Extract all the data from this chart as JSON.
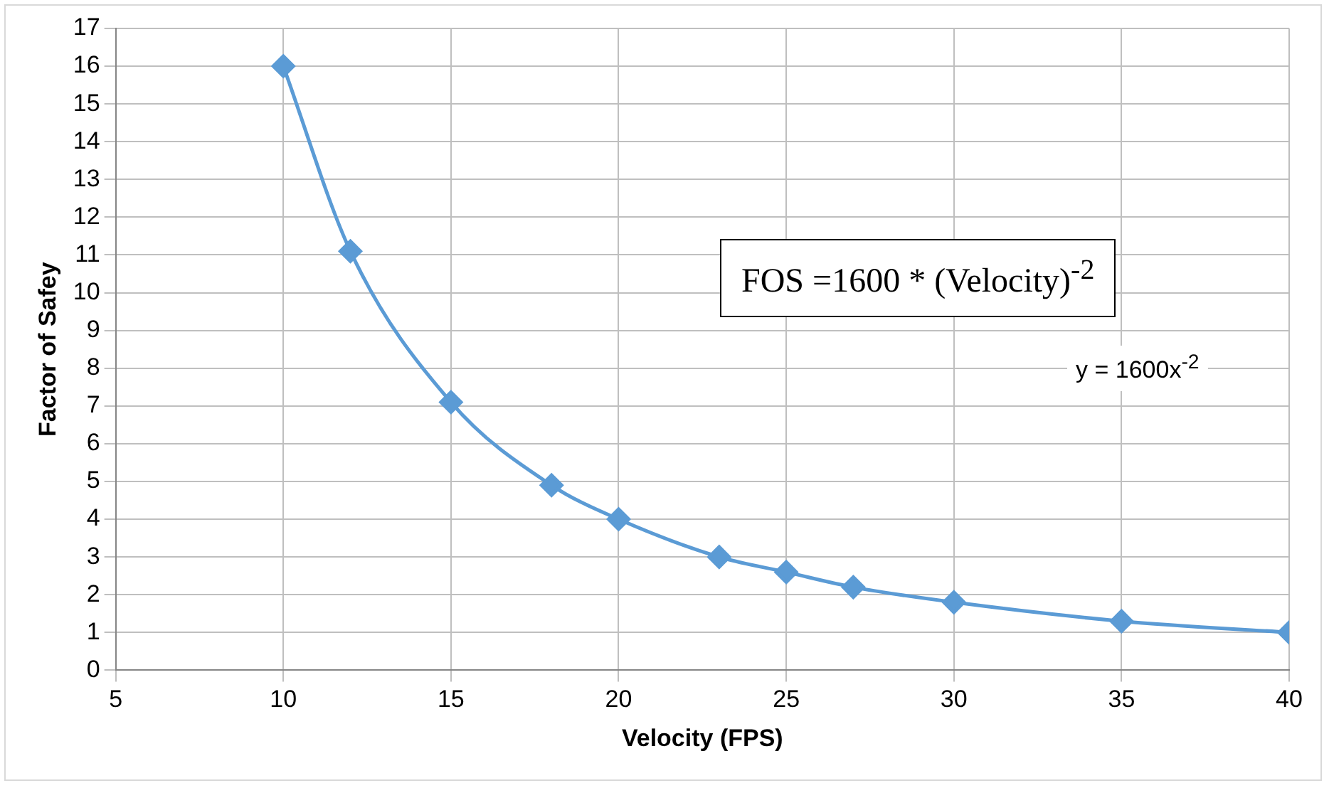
{
  "chart_data": {
    "type": "line",
    "xlabel": "Velocity (FPS)",
    "ylabel": "Factor of Safey",
    "x": [
      10,
      12,
      15,
      18,
      20,
      23,
      25,
      27,
      30,
      35,
      40
    ],
    "series": [
      {
        "color": "#5b9bd5",
        "values": [
          16,
          11.1,
          7.1,
          4.9,
          4,
          3,
          2.6,
          2.2,
          1.8,
          1.3,
          1
        ]
      }
    ],
    "xlim": [
      5,
      40
    ],
    "xticks": [
      5,
      10,
      15,
      20,
      25,
      30,
      35,
      40
    ],
    "ylim": [
      0,
      17
    ],
    "yticks": [
      0,
      1,
      2,
      3,
      4,
      5,
      6,
      7,
      8,
      9,
      10,
      11,
      12,
      13,
      14,
      15,
      16,
      17
    ],
    "grid": true,
    "legend": false,
    "marker": "diamond",
    "line_style": "solid",
    "annotations": [
      "FOS =1600 * (Velocity)$^{-2}$",
      "y = 1600x$^{-2}$"
    ]
  }
}
